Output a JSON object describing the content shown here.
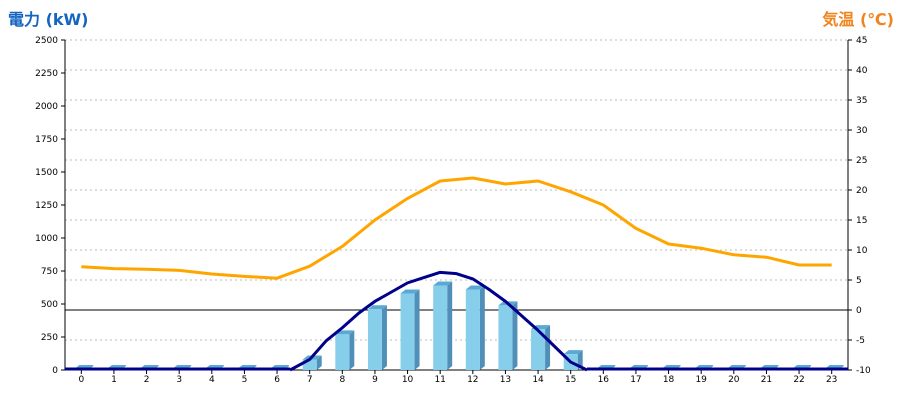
{
  "chart_data": {
    "type": "bar",
    "title_left": "電力 (kW)",
    "title_right": "気温 (℃)",
    "title_left_color": "#1565c0",
    "title_right_color": "#f0841f",
    "categories": [
      "0",
      "1",
      "2",
      "3",
      "4",
      "5",
      "6",
      "7",
      "8",
      "9",
      "10",
      "11",
      "12",
      "13",
      "14",
      "15",
      "16",
      "17",
      "18",
      "19",
      "20",
      "21",
      "22",
      "23"
    ],
    "left_axis": {
      "ylim": [
        0,
        2500
      ],
      "ticks": [
        "0",
        "250",
        "500",
        "750",
        "1000",
        "1250",
        "1500",
        "1750",
        "2000",
        "2250",
        "2500"
      ]
    },
    "right_axis": {
      "ylim": [
        -10,
        45
      ],
      "ticks": [
        "-10",
        "-5",
        "0",
        "5",
        "10",
        "15",
        "20",
        "25",
        "30",
        "35",
        "40",
        "45"
      ]
    },
    "grid": true,
    "reference_line": {
      "axis": "right",
      "value": 0
    },
    "series": [
      {
        "type": "bar3d",
        "axis": "left",
        "color": "#87ceeb",
        "values": [
          0,
          0,
          0,
          0,
          0,
          0,
          0,
          80,
          270,
          460,
          580,
          640,
          610,
          490,
          310,
          120,
          0,
          0,
          0,
          0,
          0,
          0,
          0,
          0
        ]
      },
      {
        "type": "line",
        "axis": "left",
        "color": "#00008b",
        "x": [
          6.4,
          7,
          7.5,
          8,
          8.5,
          9,
          9.5,
          10,
          10.5,
          11,
          11.5,
          12,
          12.5,
          13,
          13.5,
          14,
          14.5,
          15,
          15.5
        ],
        "values": [
          0,
          80,
          220,
          320,
          430,
          520,
          590,
          660,
          700,
          740,
          730,
          690,
          610,
          520,
          410,
          300,
          180,
          60,
          0
        ]
      },
      {
        "type": "line",
        "axis": "right",
        "color": "#ffa500",
        "values": [
          7.2,
          6.9,
          6.8,
          6.6,
          6.0,
          5.6,
          5.3,
          7.3,
          10.6,
          15,
          18.6,
          21.5,
          22,
          21,
          21.5,
          19.7,
          17.5,
          13.6,
          11,
          10.3,
          9.2,
          8.8,
          7.5,
          7.5
        ]
      }
    ]
  }
}
